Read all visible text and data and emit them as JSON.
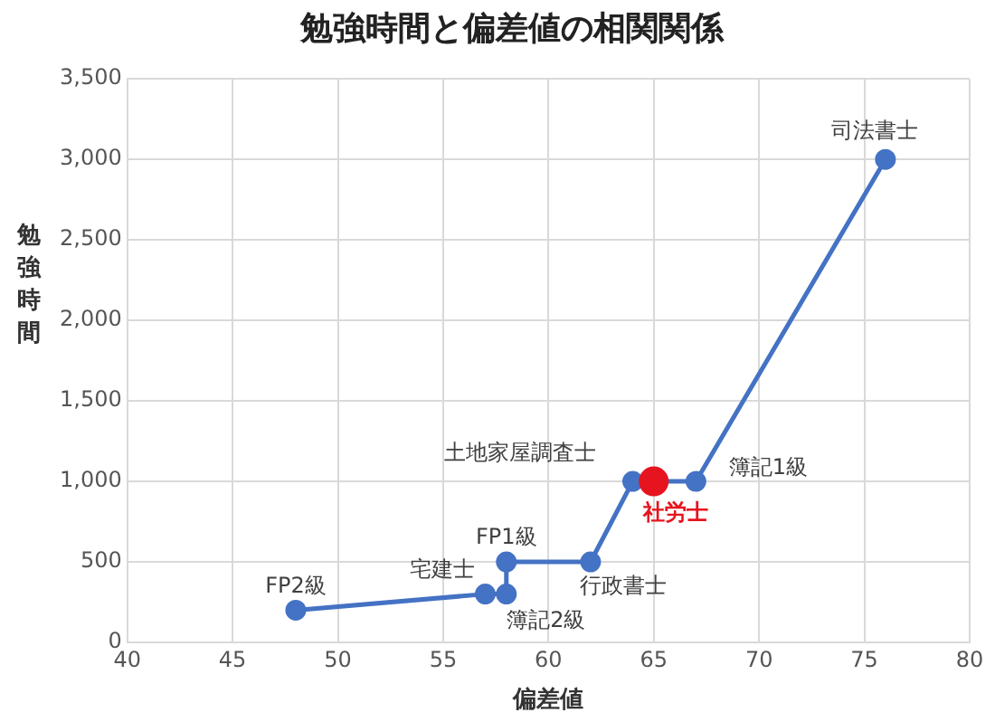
{
  "chart_data": {
    "type": "line",
    "title": "勉強時間と偏差値の相関関係",
    "xlabel": "偏差値",
    "ylabel": "勉強時間",
    "x": [
      48,
      57,
      58,
      58,
      62,
      64,
      65,
      67,
      76
    ],
    "series": [
      {
        "color": "#4472c4",
        "colors": [
          "#4472c4",
          "#4472c4",
          "#4472c4",
          "#4472c4",
          "#4472c4",
          "#4472c4",
          "#e6141e",
          "#4472c4",
          "#4472c4"
        ],
        "values": [
          200,
          300,
          300,
          500,
          500,
          1000,
          1000,
          1000,
          3000
        ]
      }
    ],
    "xlim": [
      40,
      80
    ],
    "xticks": [
      40,
      45,
      50,
      55,
      60,
      65,
      70,
      75,
      80
    ],
    "ylim": [
      0,
      3500
    ],
    "yticks": [
      {
        "value": 0,
        "label": "0"
      },
      {
        "value": 500,
        "label": "500"
      },
      {
        "value": 1000,
        "label": "1,000"
      },
      {
        "value": 1500,
        "label": "1,500"
      },
      {
        "value": 2000,
        "label": "2,000"
      },
      {
        "value": 2500,
        "label": "2,500"
      },
      {
        "value": 3000,
        "label": "3,000"
      },
      {
        "value": 3500,
        "label": "3,500"
      }
    ],
    "annotations": [
      {
        "text": "FP2級",
        "x": 48,
        "y": 200
      },
      {
        "text": "宅建士",
        "x": 57,
        "y": 300
      },
      {
        "text": "簿記2級",
        "x": 58,
        "y": 300
      },
      {
        "text": "FP1級",
        "x": 58,
        "y": 500
      },
      {
        "text": "行政書士",
        "x": 62,
        "y": 500
      },
      {
        "text": "土地家屋調査士",
        "x": 64,
        "y": 1000
      },
      {
        "text": "社労士",
        "x": 65,
        "y": 1000
      },
      {
        "text": "簿記1級",
        "x": 67,
        "y": 1000
      },
      {
        "text": "司法書士",
        "x": 76,
        "y": 3000
      }
    ],
    "grid": true,
    "legend": false,
    "marker": "circle",
    "line_style": "solid"
  }
}
